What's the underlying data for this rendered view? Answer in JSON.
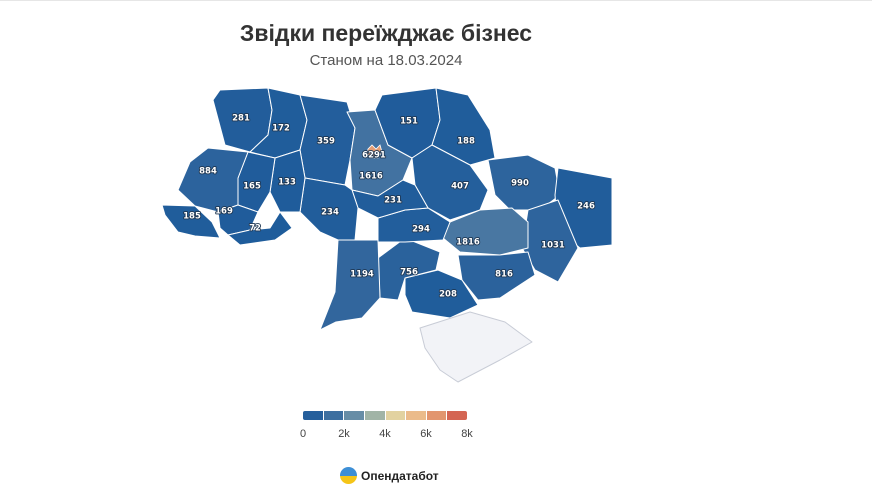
{
  "header": {
    "title": "Звідки переїжджає бізнес",
    "subtitle": "Станом на 18.03.2024"
  },
  "map": {
    "regions": [
      {
        "name": "Волинська",
        "value": 281
      },
      {
        "name": "Рівненська",
        "value": 172
      },
      {
        "name": "Житомирська",
        "value": 359
      },
      {
        "name": "Київ",
        "value": 6291
      },
      {
        "name": "Київська",
        "value": 1616
      },
      {
        "name": "Чернігівська",
        "value": 151
      },
      {
        "name": "Сумська",
        "value": 188
      },
      {
        "name": "Полтавська",
        "value": 407
      },
      {
        "name": "Харківська",
        "value": 990
      },
      {
        "name": "Луганська",
        "value": 246
      },
      {
        "name": "Донецька",
        "value": 1031
      },
      {
        "name": "Дніпропетровська",
        "value": 1816
      },
      {
        "name": "Запорізька",
        "value": 816
      },
      {
        "name": "Херсонська",
        "value": 208
      },
      {
        "name": "Миколаївська",
        "value": 756
      },
      {
        "name": "Одеська",
        "value": 1194
      },
      {
        "name": "Кіровоградська",
        "value": 294
      },
      {
        "name": "Черкаська",
        "value": 231
      },
      {
        "name": "Вінницька",
        "value": 234
      },
      {
        "name": "Хмельницька",
        "value": 133
      },
      {
        "name": "Тернопільська",
        "value": 165
      },
      {
        "name": "Львівська",
        "value": 884
      },
      {
        "name": "Закарпатська",
        "value": 185
      },
      {
        "name": "Івано-Франківська",
        "value": 169
      },
      {
        "name": "Чернівецька",
        "value": 72
      },
      {
        "name": "Крим",
        "value": null
      }
    ],
    "colors": {
      "low": "#1d5b9b",
      "high": "#cd4b45",
      "no_data": "#f2f3f7",
      "border": "#ffffff"
    }
  },
  "legend": {
    "min": 0,
    "max": 8000,
    "ticks": [
      "0",
      "2k",
      "4k",
      "6k",
      "8k"
    ],
    "colors": [
      "#1d5b9b",
      "#30659d",
      "#5b84a6",
      "#9cb2a6",
      "#e7d4a0",
      "#ecb585",
      "#dd8664",
      "#cd4b45"
    ]
  },
  "brand": {
    "name": "Опендатабот",
    "icon": "opendatabot-logo-icon"
  }
}
